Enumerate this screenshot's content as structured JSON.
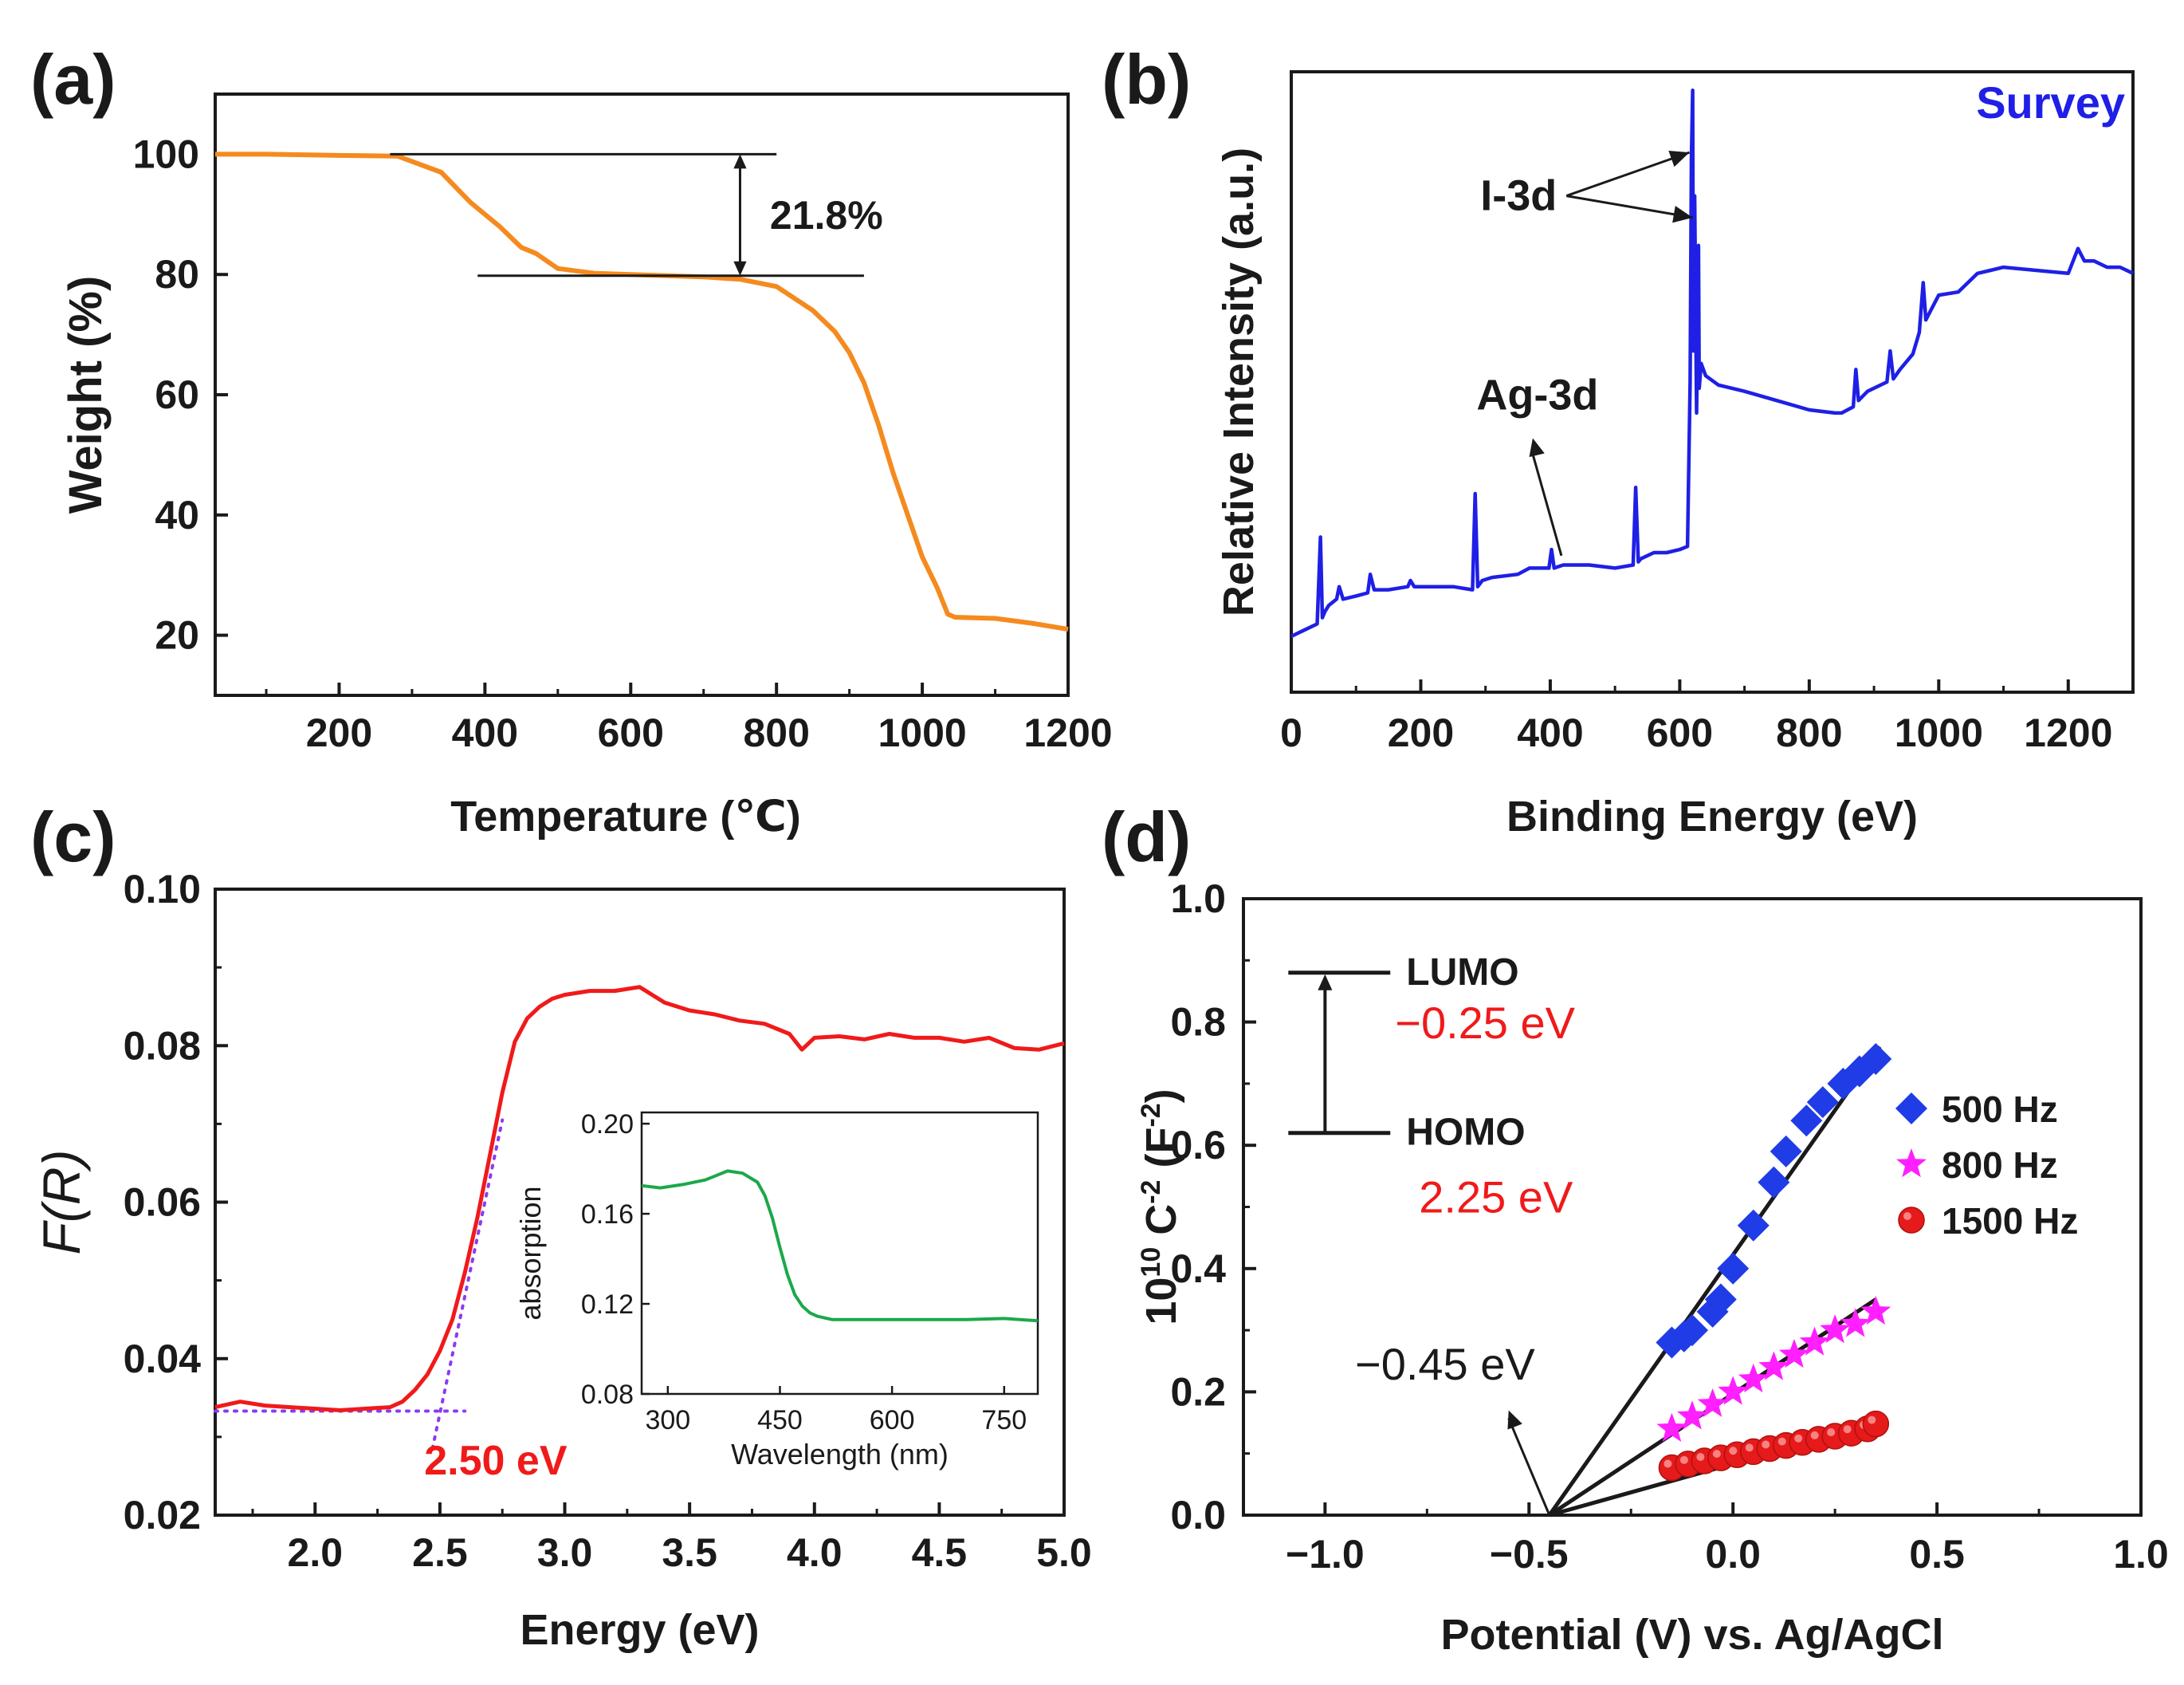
{
  "colors": {
    "tga_curve": "#f58a1f",
    "xps_curve": "#1f1fe6",
    "xps_label": "#1f1fe6",
    "kubelka_curve": "#f01a1a",
    "tauc_fit": "#8a3cf0",
    "inset_curve": "#1ca84a",
    "energy_value": "#f01a1a",
    "series_500": "#1f3ce6",
    "series_800": "#ff1fff",
    "series_1500": "#e61a1a",
    "fit_line": "#1a1a1a"
  },
  "chart_data": [
    {
      "id": "a",
      "panel_label": "(a)",
      "type": "line",
      "xlabel": "Temperature (℃)",
      "ylabel": "Weight (%)",
      "xlim": [
        30,
        1200
      ],
      "ylim": [
        10,
        110
      ],
      "xticks": [
        200,
        400,
        600,
        800,
        1000,
        1200
      ],
      "xtick_labels": [
        "200",
        "400",
        "600",
        "800",
        "1000",
        "1200"
      ],
      "yticks": [
        20,
        40,
        60,
        80,
        100
      ],
      "ytick_labels": [
        "20",
        "40",
        "60",
        "80",
        "100"
      ],
      "annotation": {
        "text": "21.8%",
        "upper_ref": {
          "x": [
            270,
            800
          ],
          "y": 100
        },
        "lower_ref": {
          "x": [
            390,
            920
          ],
          "y": 79.8
        },
        "arrow_x": 750,
        "label_x": 780,
        "label_y": 90
      },
      "series": [
        {
          "name": "weight",
          "x": [
            30,
            100,
            200,
            280,
            340,
            380,
            420,
            450,
            470,
            500,
            550,
            600,
            650,
            700,
            750,
            800,
            850,
            880,
            900,
            920,
            940,
            960,
            980,
            1000,
            1020,
            1035,
            1045,
            1100,
            1150,
            1200
          ],
          "y": [
            100,
            100,
            99.8,
            99.7,
            97,
            92,
            88,
            84.5,
            83.5,
            81,
            80.2,
            80,
            79.8,
            79.6,
            79.2,
            78,
            74,
            70.5,
            67,
            62,
            55,
            47,
            40,
            33,
            28,
            23.5,
            23,
            22.8,
            22,
            21
          ]
        }
      ]
    },
    {
      "id": "b",
      "panel_label": "(b)",
      "type": "line",
      "xlabel": "Binding Energy (eV)",
      "ylabel": "Relative Intensity (a.u.)",
      "xlim": [
        0,
        1300
      ],
      "ylim": [
        0,
        100
      ],
      "xticks": [
        0,
        200,
        400,
        600,
        800,
        1000,
        1200
      ],
      "xtick_labels": [
        "0",
        "200",
        "400",
        "600",
        "800",
        "1000",
        "1200"
      ],
      "legend": "Survey",
      "legend_placement": "top-right",
      "peak_labels": [
        {
          "text": "I-3d",
          "tail": [
            425,
            80
          ],
          "heads": [
            [
              615,
              87
            ],
            [
              620,
              76.5
            ]
          ]
        },
        {
          "text": "Ag-3d",
          "tail": [
            368,
            43
          ],
          "heads": [
            [
              368,
              43
            ]
          ]
        }
      ],
      "series": [
        {
          "name": "Survey",
          "x": [
            0,
            20,
            40,
            45,
            48,
            52,
            58,
            70,
            74,
            80,
            100,
            118,
            122,
            128,
            150,
            180,
            184,
            190,
            250,
            280,
            284,
            288,
            295,
            310,
            350,
            368,
            380,
            398,
            402,
            406,
            420,
            460,
            500,
            528,
            532,
            536,
            540,
            560,
            580,
            600,
            612,
            616,
            618,
            620,
            621,
            623,
            626,
            629,
            630,
            633,
            640,
            660,
            700,
            750,
            800,
            840,
            850,
            868,
            872,
            876,
            890,
            920,
            925,
            930,
            940,
            960,
            970,
            976,
            980,
            990,
            1000,
            1030,
            1060,
            1080,
            1100,
            1150,
            1200,
            1215,
            1220,
            1225,
            1240,
            1260,
            1280,
            1300
          ],
          "y": [
            9,
            10,
            11,
            25,
            12,
            13,
            14,
            15,
            17,
            15,
            15.5,
            16,
            19,
            16.5,
            16.5,
            17,
            18,
            17,
            17,
            16.5,
            32,
            17,
            18,
            18.5,
            19,
            20,
            20,
            20,
            23,
            20,
            20.5,
            20.5,
            20,
            20.5,
            33,
            21,
            21.5,
            22.5,
            22.5,
            23,
            23.5,
            50,
            86,
            97,
            55,
            80,
            45,
            72,
            49,
            53,
            51,
            49.5,
            48.5,
            47,
            45.5,
            45,
            45,
            46,
            52,
            47,
            48.5,
            50,
            55,
            50.5,
            52,
            54.5,
            58,
            66,
            60,
            62,
            64,
            64.5,
            67.5,
            68,
            68.5,
            68,
            67.5,
            71.5,
            70.5,
            69.5,
            69.5,
            68.5,
            68.5,
            67.5
          ]
        }
      ]
    },
    {
      "id": "c",
      "panel_label": "(c)",
      "type": "line",
      "xlabel": "Energy (eV)",
      "ylabel": "F(R)",
      "xlim": [
        1.6,
        5.0
      ],
      "ylim": [
        0.02,
        0.1
      ],
      "xticks": [
        2.0,
        2.5,
        3.0,
        3.5,
        4.0,
        4.5,
        5.0
      ],
      "xtick_labels": [
        "2.0",
        "2.5",
        "3.0",
        "3.5",
        "4.0",
        "4.5",
        "5.0"
      ],
      "yticks": [
        0.02,
        0.04,
        0.06,
        0.08,
        0.1
      ],
      "ytick_labels": [
        "0.02",
        "0.04",
        "0.06",
        "0.08",
        "0.10"
      ],
      "annotation": {
        "text": "2.50 eV",
        "x": 2.5,
        "y": 0.0305
      },
      "fit_lines": [
        {
          "x": [
            2.47,
            2.75
          ],
          "y": [
            0.0285,
            0.0705
          ]
        },
        {
          "x": [
            1.6,
            2.6
          ],
          "y": [
            0.0333,
            0.0333
          ]
        }
      ],
      "series": [
        {
          "name": "F(R)",
          "x": [
            1.6,
            1.7,
            1.8,
            1.9,
            2.0,
            2.1,
            2.2,
            2.3,
            2.35,
            2.4,
            2.45,
            2.5,
            2.55,
            2.6,
            2.65,
            2.7,
            2.75,
            2.8,
            2.85,
            2.9,
            2.95,
            3.0,
            3.1,
            3.2,
            3.3,
            3.4,
            3.5,
            3.6,
            3.7,
            3.8,
            3.9,
            3.95,
            4.0,
            4.1,
            4.2,
            4.3,
            4.4,
            4.5,
            4.6,
            4.7,
            4.8,
            4.9,
            5.0
          ],
          "y": [
            0.0338,
            0.0345,
            0.034,
            0.0338,
            0.0336,
            0.0334,
            0.0336,
            0.0338,
            0.0345,
            0.036,
            0.038,
            0.041,
            0.045,
            0.051,
            0.058,
            0.066,
            0.074,
            0.0805,
            0.0835,
            0.085,
            0.086,
            0.0865,
            0.087,
            0.087,
            0.0875,
            0.0855,
            0.0845,
            0.084,
            0.0832,
            0.0828,
            0.0815,
            0.0795,
            0.081,
            0.0812,
            0.0808,
            0.0815,
            0.081,
            0.081,
            0.0805,
            0.081,
            0.0797,
            0.0795,
            0.0803
          ]
        }
      ]
    },
    {
      "id": "c-inset",
      "panel_label": "",
      "type": "line",
      "xlabel": "Wavelength (nm)",
      "ylabel": "absorption",
      "xlim": [
        265,
        795
      ],
      "ylim": [
        0.08,
        0.205
      ],
      "xticks": [
        300,
        450,
        600,
        750
      ],
      "xtick_labels": [
        "300",
        "450",
        "600",
        "750"
      ],
      "yticks": [
        0.08,
        0.12,
        0.16,
        0.2
      ],
      "ytick_labels": [
        "0.08",
        "0.12",
        "0.16",
        "0.20"
      ],
      "series": [
        {
          "name": "absorption",
          "x": [
            265,
            290,
            320,
            350,
            380,
            400,
            420,
            430,
            440,
            450,
            460,
            470,
            480,
            490,
            500,
            520,
            550,
            600,
            650,
            700,
            750,
            795
          ],
          "y": [
            0.1725,
            0.1715,
            0.173,
            0.175,
            0.179,
            0.178,
            0.174,
            0.168,
            0.158,
            0.145,
            0.133,
            0.124,
            0.119,
            0.116,
            0.1145,
            0.113,
            0.113,
            0.113,
            0.113,
            0.113,
            0.1135,
            0.1125
          ]
        }
      ]
    },
    {
      "id": "d",
      "panel_label": "(d)",
      "type": "scatter",
      "xlabel": "Potential (V) vs. Ag/AgCl",
      "ylabel": "10^10 C^-2 (F^-2)",
      "ylabel_parts": {
        "base": "10",
        "exp": "10",
        "mid": "C",
        "mid_exp": "-2",
        "unit": "(F",
        "unit_exp": "-2",
        "close": ")"
      },
      "xlim": [
        -1.2,
        1.0
      ],
      "ylim": [
        0.0,
        1.0
      ],
      "xticks": [
        -1.0,
        -0.5,
        0.0,
        0.5,
        1.0
      ],
      "xtick_labels": [
        "−1.0",
        "−0.5",
        "0.0",
        "0.5",
        "1.0"
      ],
      "yticks": [
        0.0,
        0.2,
        0.4,
        0.6,
        0.8,
        1.0
      ],
      "ytick_labels": [
        "0.0",
        "0.2",
        "0.4",
        "0.6",
        "0.8",
        "1.0"
      ],
      "band_diagram": {
        "lumo_label": "LUMO",
        "lumo_value": "−0.25 eV",
        "homo_label": "HOMO",
        "homo_value": "2.25 eV",
        "lumo_y": 0.88,
        "homo_y": 0.62,
        "x_range": [
          -1.09,
          -0.84
        ],
        "arrow_x": -1.0
      },
      "intercept": {
        "text": "−0.45 eV",
        "x": -0.45,
        "y": 0.0,
        "arrow_tail": [
          -0.45,
          0.0
        ],
        "arrow_head": [
          -0.55,
          0.17
        ]
      },
      "series": [
        {
          "name": "500 Hz",
          "marker": "diamond",
          "x": [
            -0.15,
            -0.12,
            -0.1,
            -0.05,
            -0.03,
            0.0,
            0.05,
            0.1,
            0.13,
            0.18,
            0.22,
            0.27,
            0.31,
            0.35
          ],
          "y": [
            0.28,
            0.29,
            0.3,
            0.33,
            0.35,
            0.4,
            0.47,
            0.54,
            0.59,
            0.64,
            0.67,
            0.7,
            0.72,
            0.74
          ],
          "fit": {
            "x": [
              -0.45,
              0.36
            ],
            "y": [
              0.0,
              0.76
            ]
          }
        },
        {
          "name": "800 Hz",
          "marker": "star",
          "x": [
            -0.15,
            -0.1,
            -0.05,
            0.0,
            0.05,
            0.1,
            0.15,
            0.2,
            0.25,
            0.3,
            0.35
          ],
          "y": [
            0.14,
            0.16,
            0.18,
            0.2,
            0.22,
            0.24,
            0.26,
            0.28,
            0.3,
            0.31,
            0.33
          ],
          "fit": {
            "x": [
              -0.45,
              0.35
            ],
            "y": [
              0.0,
              0.35
            ]
          }
        },
        {
          "name": "1500 Hz",
          "marker": "circle",
          "x": [
            -0.15,
            -0.11,
            -0.07,
            -0.03,
            0.01,
            0.05,
            0.09,
            0.13,
            0.17,
            0.21,
            0.25,
            0.29,
            0.33,
            0.35
          ],
          "y": [
            0.077,
            0.083,
            0.088,
            0.093,
            0.098,
            0.103,
            0.108,
            0.113,
            0.118,
            0.123,
            0.128,
            0.133,
            0.14,
            0.148
          ],
          "fit": {
            "x": [
              -0.45,
              0.35
            ],
            "y": [
              0.0,
              0.148
            ]
          }
        }
      ]
    }
  ]
}
